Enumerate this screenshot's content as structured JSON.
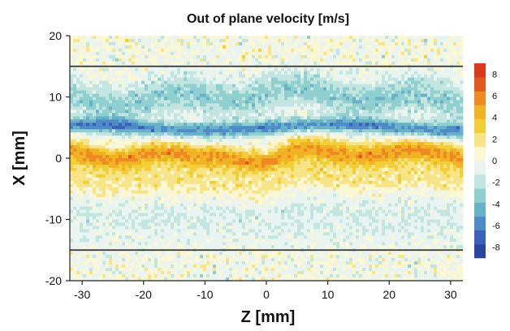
{
  "chart_data": {
    "type": "heatmap",
    "title": "Out of plane velocity [m/s]",
    "xlabel": "Z [mm]",
    "ylabel": "X [mm]",
    "xlim": [
      -32,
      32
    ],
    "ylim": [
      -20,
      20
    ],
    "xticks": [
      -30,
      -20,
      -10,
      0,
      10,
      20,
      30
    ],
    "yticks": [
      20,
      10,
      0,
      -10,
      -20
    ],
    "reference_lines_y": [
      15,
      -15
    ],
    "colorbar": {
      "ticks": [
        8,
        6,
        4,
        2,
        0,
        -2,
        -4,
        -6,
        -8
      ],
      "range": [
        -9,
        9
      ],
      "colors": [
        "#2b45a0",
        "#3a62b8",
        "#4e8bc8",
        "#67b1c9",
        "#90cfd0",
        "#c2e5e0",
        "#e9f4f1",
        "#faf7d2",
        "#f7e486",
        "#f2cf36",
        "#f1b223",
        "#ef8a22",
        "#e4551f",
        "#d93a1d"
      ]
    },
    "features": [
      {
        "name": "upper band",
        "description_x_range_mm": [
          5,
          13
        ],
        "velocity": -3
      },
      {
        "name": "shear layer",
        "description_x_range_mm": [
          3,
          7
        ],
        "velocity": -6
      },
      {
        "name": "lower band",
        "description_x_range_mm": [
          -8,
          3
        ],
        "velocity": 5
      }
    ]
  }
}
